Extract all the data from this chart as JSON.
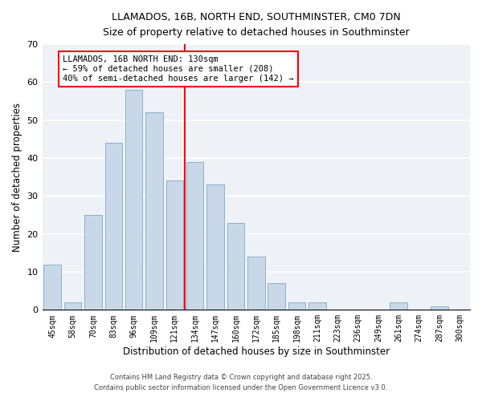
{
  "title": "LLAMADOS, 16B, NORTH END, SOUTHMINSTER, CM0 7DN",
  "subtitle": "Size of property relative to detached houses in Southminster",
  "xlabel": "Distribution of detached houses by size in Southminster",
  "ylabel": "Number of detached properties",
  "bar_color": "#c8d8e8",
  "bar_edge_color": "#8ab0cc",
  "background_color": "#eef2f7",
  "grid_color": "white",
  "categories": [
    "45sqm",
    "58sqm",
    "70sqm",
    "83sqm",
    "96sqm",
    "109sqm",
    "121sqm",
    "134sqm",
    "147sqm",
    "160sqm",
    "172sqm",
    "185sqm",
    "198sqm",
    "211sqm",
    "223sqm",
    "236sqm",
    "249sqm",
    "261sqm",
    "274sqm",
    "287sqm",
    "300sqm"
  ],
  "values": [
    12,
    2,
    25,
    44,
    58,
    52,
    34,
    39,
    33,
    23,
    14,
    7,
    2,
    2,
    0,
    0,
    0,
    2,
    0,
    1,
    0
  ],
  "vline_color": "red",
  "annotation_title": "LLAMADOS, 16B NORTH END: 130sqm",
  "annotation_line1": "← 59% of detached houses are smaller (208)",
  "annotation_line2": "40% of semi-detached houses are larger (142) →",
  "ylim": [
    0,
    70
  ],
  "yticks": [
    0,
    10,
    20,
    30,
    40,
    50,
    60,
    70
  ],
  "footer1": "Contains HM Land Registry data © Crown copyright and database right 2025.",
  "footer2": "Contains public sector information licensed under the Open Government Licence v3.0."
}
